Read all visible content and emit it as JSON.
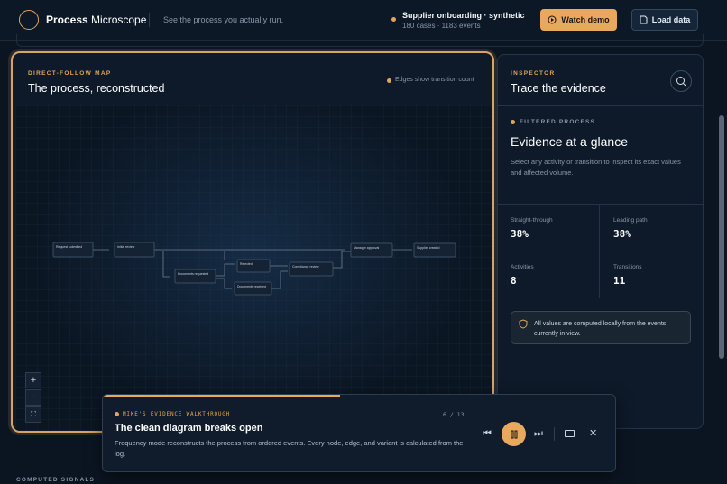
{
  "header": {
    "brand_bold": "Process",
    "brand_rest": "Microscope",
    "tagline": "See the process you actually run.",
    "dataset_name": "Supplier onboarding · synthetic",
    "dataset_meta": "180 cases · 1183 events",
    "watch_demo": "Watch demo",
    "load_data": "Load data"
  },
  "map": {
    "eyebrow": "DIRECT-FOLLOW MAP",
    "title": "The process, reconstructed",
    "legend": "Edges show transition count",
    "nodes": [
      {
        "label": "Request submitted"
      },
      {
        "label": "Initial review"
      },
      {
        "label": "Documents requested"
      },
      {
        "label": "Rejected"
      },
      {
        "label": "Documents received"
      },
      {
        "label": "Compliance review"
      },
      {
        "label": "Manager approval"
      },
      {
        "label": "Supplier created"
      }
    ]
  },
  "inspector": {
    "eyebrow": "INSPECTOR",
    "title": "Trace the evidence",
    "tag": "FILTERED PROCESS",
    "heading": "Evidence at a glance",
    "description": "Select any activity or transition to inspect its exact values and affected volume.",
    "stats": [
      {
        "label": "Straight-through",
        "value": "38%"
      },
      {
        "label": "Leading path",
        "value": "38%"
      },
      {
        "label": "Activities",
        "value": "8"
      },
      {
        "label": "Transitions",
        "value": "11"
      }
    ],
    "note": "All values are computed locally from the events currently in view."
  },
  "walkthrough": {
    "eyebrow": "MIKE'S EVIDENCE WALKTHROUGH",
    "step": "6 / 13",
    "title": "The clean diagram breaks open",
    "description": "Frequency mode reconstructs the process from ordered events. Every node, edge, and variant is calculated from the log."
  },
  "footer": {
    "section": "COMPUTED SIGNALS"
  }
}
